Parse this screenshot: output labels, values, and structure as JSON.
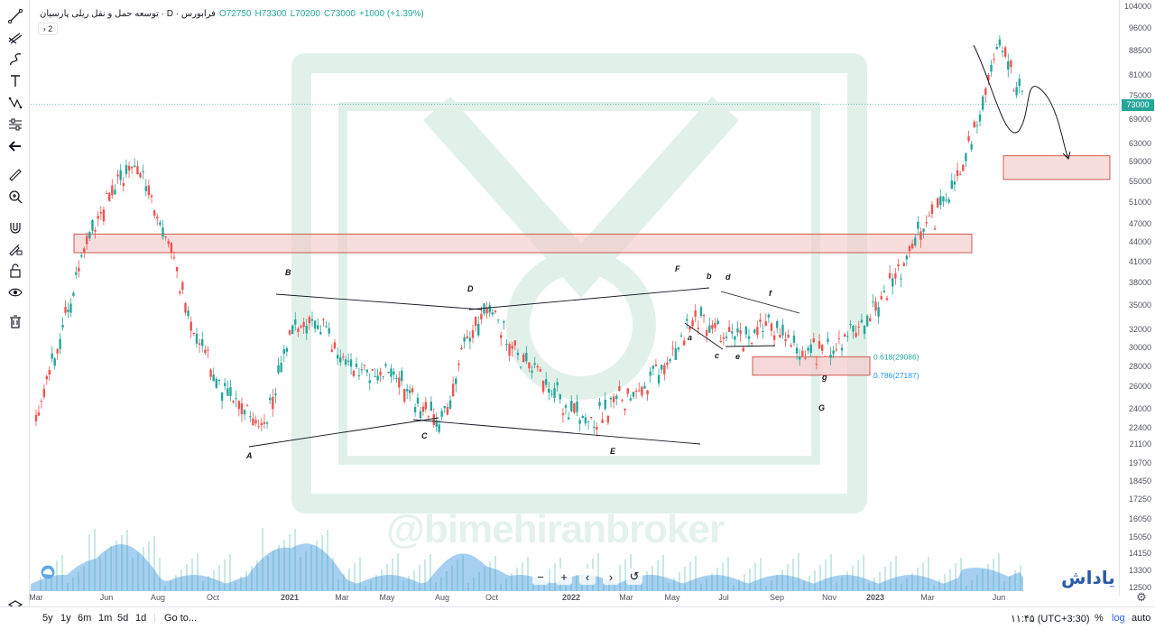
{
  "legend": {
    "title": "توسعه حمل و نقل ریلی پارسیان · D · فرابورس",
    "open": "O72750",
    "high": "H73300",
    "low": "L70200",
    "close": "C73000",
    "change": "+1000 (+1.39%)"
  },
  "collapse_label": "› 2",
  "last_price_label": "73000",
  "price_ticks": [
    "104000",
    "96000",
    "88500",
    "81000",
    "75000",
    "73000",
    "69000",
    "63000",
    "59000",
    "55000",
    "51000",
    "47000",
    "44000",
    "41000",
    "38000",
    "35000",
    "32000",
    "30000",
    "28000",
    "26000",
    "24000",
    "22400",
    "21100",
    "19700",
    "18450",
    "17250",
    "16050",
    "15050",
    "14150",
    "13300",
    "12500"
  ],
  "time_labels": [
    "Mar",
    "Jun",
    "Aug",
    "Oct",
    "2021",
    "Mar",
    "May",
    "Aug",
    "Oct",
    "2022",
    "Mar",
    "May",
    "Jul",
    "Sep",
    "Nov",
    "2023",
    "Mar",
    "Jun"
  ],
  "wave_labels": [
    "A",
    "B",
    "C",
    "D",
    "E",
    "F",
    "a",
    "b",
    "c",
    "d",
    "e",
    "f",
    "g",
    "G"
  ],
  "fib_labels": [
    "0.618(29086)",
    "0.786(27187)"
  ],
  "watermark": "@bimehiranbroker",
  "brand": "یاداش",
  "nav": {
    "zoom_out": "−",
    "zoom_in": "+",
    "back": "‹",
    "forward": "›",
    "reset": "↺"
  },
  "footer": {
    "ranges": [
      "5y",
      "1y",
      "6m",
      "1m",
      "5d",
      "1d"
    ],
    "goto": "Go to...",
    "time": "۱۱:۴۵ (UTC+3:30)",
    "percent": "%",
    "log": "log",
    "auto": "auto"
  },
  "colors": {
    "up": "#26a69a",
    "down": "#ef5350",
    "zone": "#f4c7c7",
    "zone_border": "#c0392b",
    "volume": "#5fa8e6"
  },
  "icons": [
    "trend-line-icon",
    "pitchfork-icon",
    "brush-icon",
    "text-icon",
    "pattern-icon",
    "forecast-icon",
    "back-arrow-icon",
    "ruler-icon",
    "zoom-icon",
    "magnet-icon",
    "lock-drawing-icon",
    "unlock-icon",
    "eye-icon",
    "trash-icon",
    "layers-icon"
  ],
  "chart_data": {
    "type": "candlestick",
    "symbol": "توسعه حمل و نقل ریلی پارسیان",
    "interval": "D",
    "log_scale": true,
    "ylim": [
      12500,
      104000
    ],
    "x_range": [
      "2020-03",
      "2023-06"
    ],
    "series": [
      {
        "name": "close",
        "x": [
          "2020-03",
          "2020-05",
          "2020-06",
          "2020-07",
          "2020-08",
          "2020-09",
          "2020-10",
          "2020-11",
          "2020-12",
          "2021-01",
          "2021-02",
          "2021-03",
          "2021-05",
          "2021-07",
          "2021-08",
          "2021-09",
          "2021-10",
          "2021-11",
          "2021-12",
          "2022-01",
          "2022-02",
          "2022-03",
          "2022-04",
          "2022-05",
          "2022-06",
          "2022-07",
          "2022-08",
          "2022-09",
          "2022-10",
          "2022-11",
          "2022-12",
          "2023-01",
          "2023-02",
          "2023-03",
          "2023-04",
          "2023-05",
          "2023-06"
        ],
        "values": [
          23000,
          44000,
          53000,
          59000,
          47000,
          34000,
          27000,
          24000,
          22500,
          31000,
          34000,
          29000,
          27000,
          23000,
          31000,
          35000,
          29000,
          26500,
          24000,
          23000,
          25000,
          26000,
          29000,
          34000,
          32000,
          31000,
          33000,
          30000,
          29200,
          31000,
          34000,
          40000,
          47000,
          51000,
          66000,
          90000,
          73000
        ]
      }
    ],
    "volume_profile": "area under candles",
    "annotations": {
      "resistance_zone": [
        42500,
        45500
      ],
      "fib_support_zone": [
        27187,
        29086
      ],
      "target_zone": [
        55500,
        60500
      ]
    }
  }
}
